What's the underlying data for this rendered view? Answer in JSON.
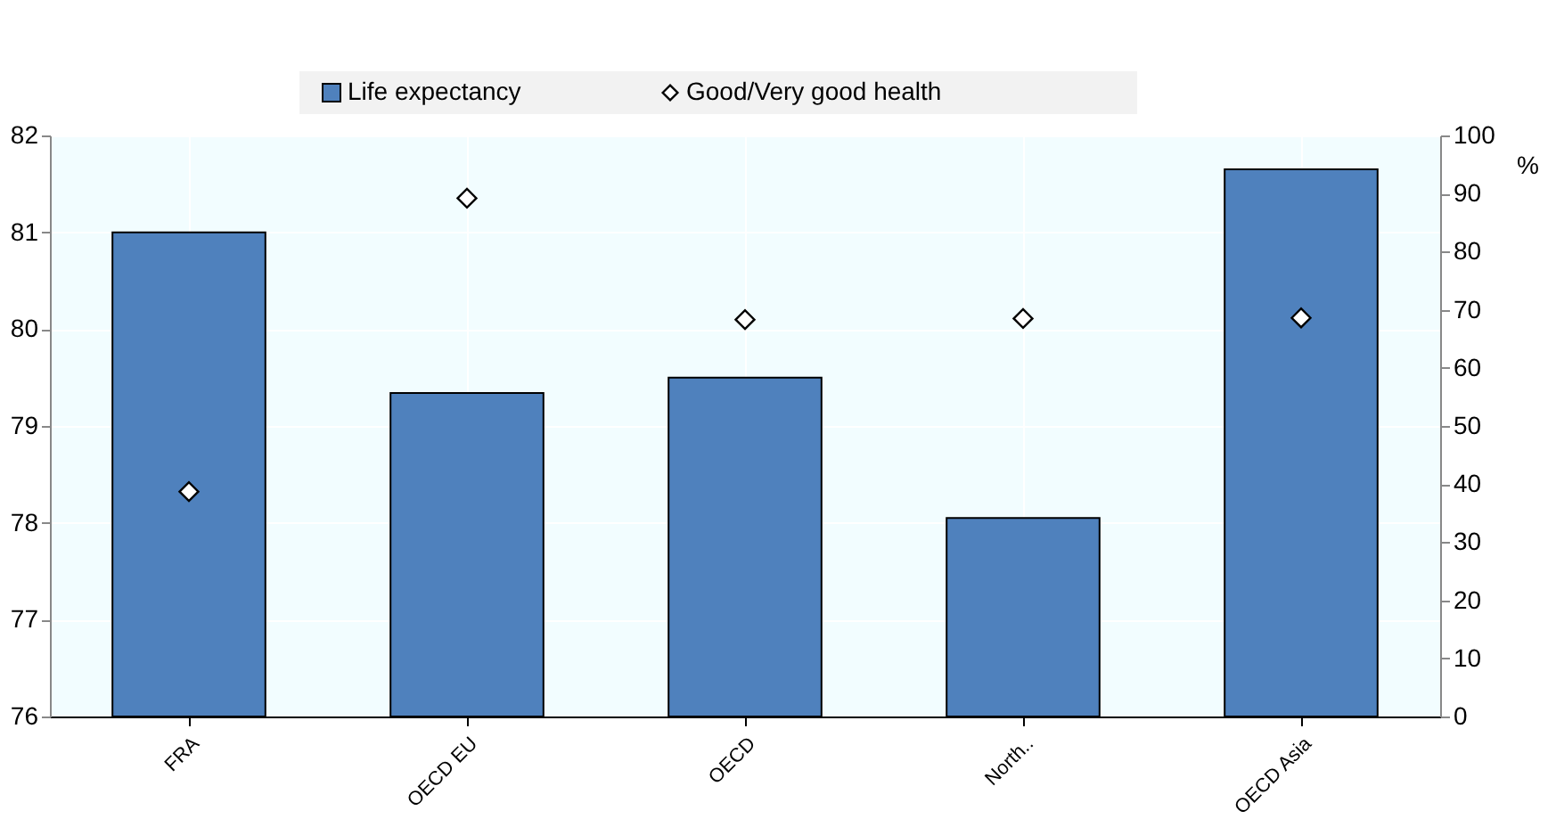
{
  "chart_data": {
    "type": "bar",
    "categories": [
      "FRA",
      "OECD EU",
      "OECD",
      "North..",
      "OECD Asia"
    ],
    "series": [
      {
        "name": "Life expectancy",
        "type": "bar",
        "color": "#4f81bd",
        "values": [
          81.0,
          79.34,
          79.5,
          78.05,
          81.65
        ]
      },
      {
        "name": "Good/Very good health",
        "type": "scatter",
        "axis": "y2",
        "color": "#ffffff",
        "values": [
          38.7,
          89.2,
          68.3,
          68.5,
          68.6
        ]
      }
    ],
    "ylim": [
      76,
      82
    ],
    "yticks": [
      76,
      77,
      78,
      79,
      80,
      81,
      82
    ],
    "y2lim": [
      0,
      100
    ],
    "y2ticks": [
      0,
      10,
      20,
      30,
      40,
      50,
      60,
      70,
      80,
      90,
      100
    ],
    "y2label": "%",
    "marker": "diamond",
    "legend": "top",
    "grid": true
  }
}
